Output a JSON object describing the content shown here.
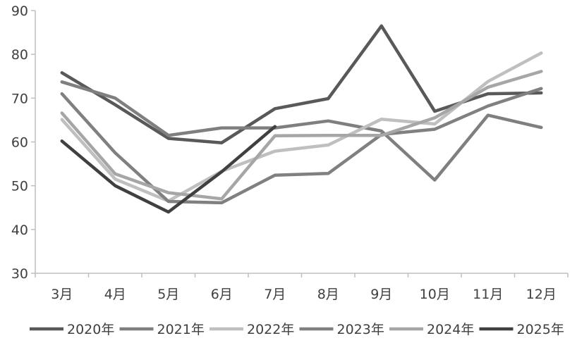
{
  "chart_data": {
    "type": "line",
    "categories": [
      "3月",
      "4月",
      "5月",
      "6月",
      "7月",
      "8月",
      "9月",
      "10月",
      "11月",
      "12月"
    ],
    "ylim": [
      30,
      90
    ],
    "yticks": [
      30,
      40,
      50,
      60,
      70,
      80,
      90
    ],
    "grid": false,
    "legend_position": "bottom",
    "series": [
      {
        "name": "2020年",
        "color": "#595959",
        "values": [
          75.8,
          68.5,
          60.8,
          59.8,
          67.6,
          69.9,
          86.5,
          67.0,
          71.0,
          71.2
        ]
      },
      {
        "name": "2021年",
        "color": "#7f7f7f",
        "values": [
          73.7,
          70.0,
          61.5,
          63.2,
          63.2,
          64.8,
          62.5,
          51.3,
          66.1,
          63.3
        ]
      },
      {
        "name": "2022年",
        "color": "#bfbfbf",
        "values": [
          65.1,
          51.5,
          46.5,
          53.3,
          57.9,
          59.3,
          65.2,
          64.1,
          73.8,
          80.3
        ]
      },
      {
        "name": "2023年",
        "color": "#808080",
        "values": [
          71.0,
          57.5,
          46.4,
          46.1,
          52.4,
          52.8,
          61.7,
          62.9,
          68.2,
          72.2
        ]
      },
      {
        "name": "2024年",
        "color": "#a6a6a6",
        "values": [
          66.6,
          52.7,
          48.4,
          47.0,
          61.4,
          61.5,
          61.5,
          65.5,
          72.5,
          76.1
        ]
      },
      {
        "name": "2025年",
        "color": "#404040",
        "values": [
          60.2,
          50.0,
          44.0,
          53.2,
          63.5,
          null,
          null,
          null,
          null,
          null
        ]
      }
    ]
  }
}
